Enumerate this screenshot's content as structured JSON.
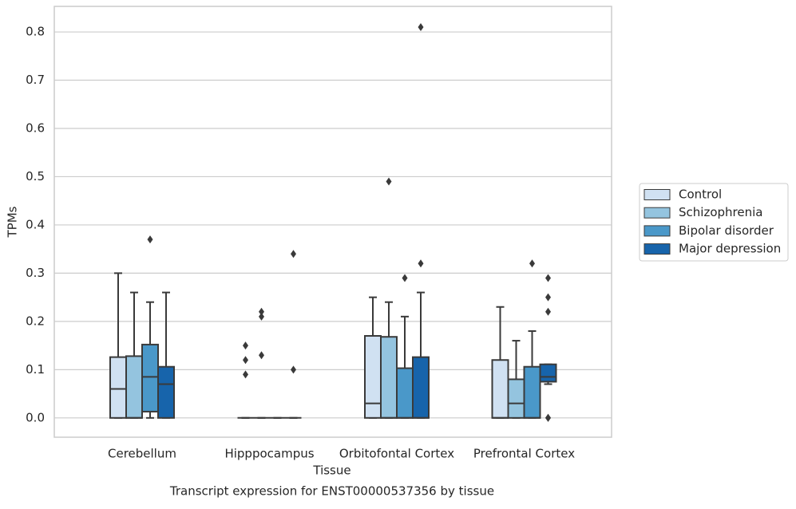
{
  "chart_data": {
    "type": "box",
    "title": "Transcript expression for ENST00000537356 by tissue",
    "x_label": "Tissue",
    "y_label": "TPMs",
    "categories": [
      "Cerebellum",
      "Hipppocampus",
      "Orbitofontal Cortex",
      "Prefrontal Cortex"
    ],
    "ylim": [
      -0.04,
      0.853
    ],
    "yticks": [
      {
        "value": 0,
        "label": "0.0"
      },
      0.1,
      0.2,
      0.3,
      0.4,
      0.5,
      0.6,
      0.7,
      0.8
    ],
    "grid": true,
    "legend": "right",
    "series": [
      {
        "name": "Control",
        "color": "#d0e1f2",
        "boxes": [
          {
            "whislo": 0,
            "q1": 0,
            "med": 0.06,
            "q3": 0.126,
            "whishi": 0.3,
            "fliers": []
          },
          {
            "whislo": 0,
            "q1": 0,
            "med": 0,
            "q3": 0,
            "whishi": 0,
            "fliers": [
              0.15,
              0.12,
              0.09
            ]
          },
          {
            "whislo": 0,
            "q1": 0,
            "med": 0.03,
            "q3": 0.17,
            "whishi": 0.25,
            "fliers": []
          },
          {
            "whislo": 0,
            "q1": 0,
            "med": 0,
            "q3": 0.12,
            "whishi": 0.23,
            "fliers": []
          }
        ]
      },
      {
        "name": "Schizophrenia",
        "color": "#94c4df",
        "boxes": [
          {
            "whislo": 0,
            "q1": 0,
            "med": 0,
            "q3": 0.128,
            "whishi": 0.26,
            "fliers": []
          },
          {
            "whislo": 0,
            "q1": 0,
            "med": 0,
            "q3": 0,
            "whishi": 0,
            "fliers": [
              0.22,
              0.21,
              0.13
            ]
          },
          {
            "whislo": 0,
            "q1": 0,
            "med": 0,
            "q3": 0.168,
            "whishi": 0.24,
            "fliers": [
              0.49
            ]
          },
          {
            "whislo": 0,
            "q1": 0,
            "med": 0.03,
            "q3": 0.08,
            "whishi": 0.16,
            "fliers": []
          }
        ]
      },
      {
        "name": "Bipolar disorder",
        "color": "#4a98c9",
        "boxes": [
          {
            "whislo": 0,
            "q1": 0.013,
            "med": 0.085,
            "q3": 0.152,
            "whishi": 0.24,
            "fliers": [
              0.37
            ]
          },
          {
            "whislo": 0,
            "q1": 0,
            "med": 0,
            "q3": 0,
            "whishi": 0,
            "fliers": []
          },
          {
            "whislo": 0,
            "q1": 0,
            "med": 0,
            "q3": 0.103,
            "whishi": 0.21,
            "fliers": [
              0.29
            ]
          },
          {
            "whislo": 0,
            "q1": 0,
            "med": 0,
            "q3": 0.106,
            "whishi": 0.18,
            "fliers": [
              0.32
            ]
          }
        ]
      },
      {
        "name": "Major depression",
        "color": "#1764ab",
        "boxes": [
          {
            "whislo": 0,
            "q1": 0,
            "med": 0.07,
            "q3": 0.106,
            "whishi": 0.26,
            "fliers": []
          },
          {
            "whislo": 0,
            "q1": 0,
            "med": 0,
            "q3": 0,
            "whishi": 0,
            "fliers": [
              0.34,
              0.1
            ]
          },
          {
            "whislo": 0,
            "q1": 0,
            "med": 0,
            "q3": 0.126,
            "whishi": 0.26,
            "fliers": [
              0.32,
              0.81
            ]
          },
          {
            "whislo": 0.07,
            "q1": 0.075,
            "med": 0.085,
            "q3": 0.111,
            "whishi": 0.111,
            "fliers": [
              0.29,
              0.25,
              0.22,
              0,
              0
            ]
          }
        ]
      }
    ]
  }
}
